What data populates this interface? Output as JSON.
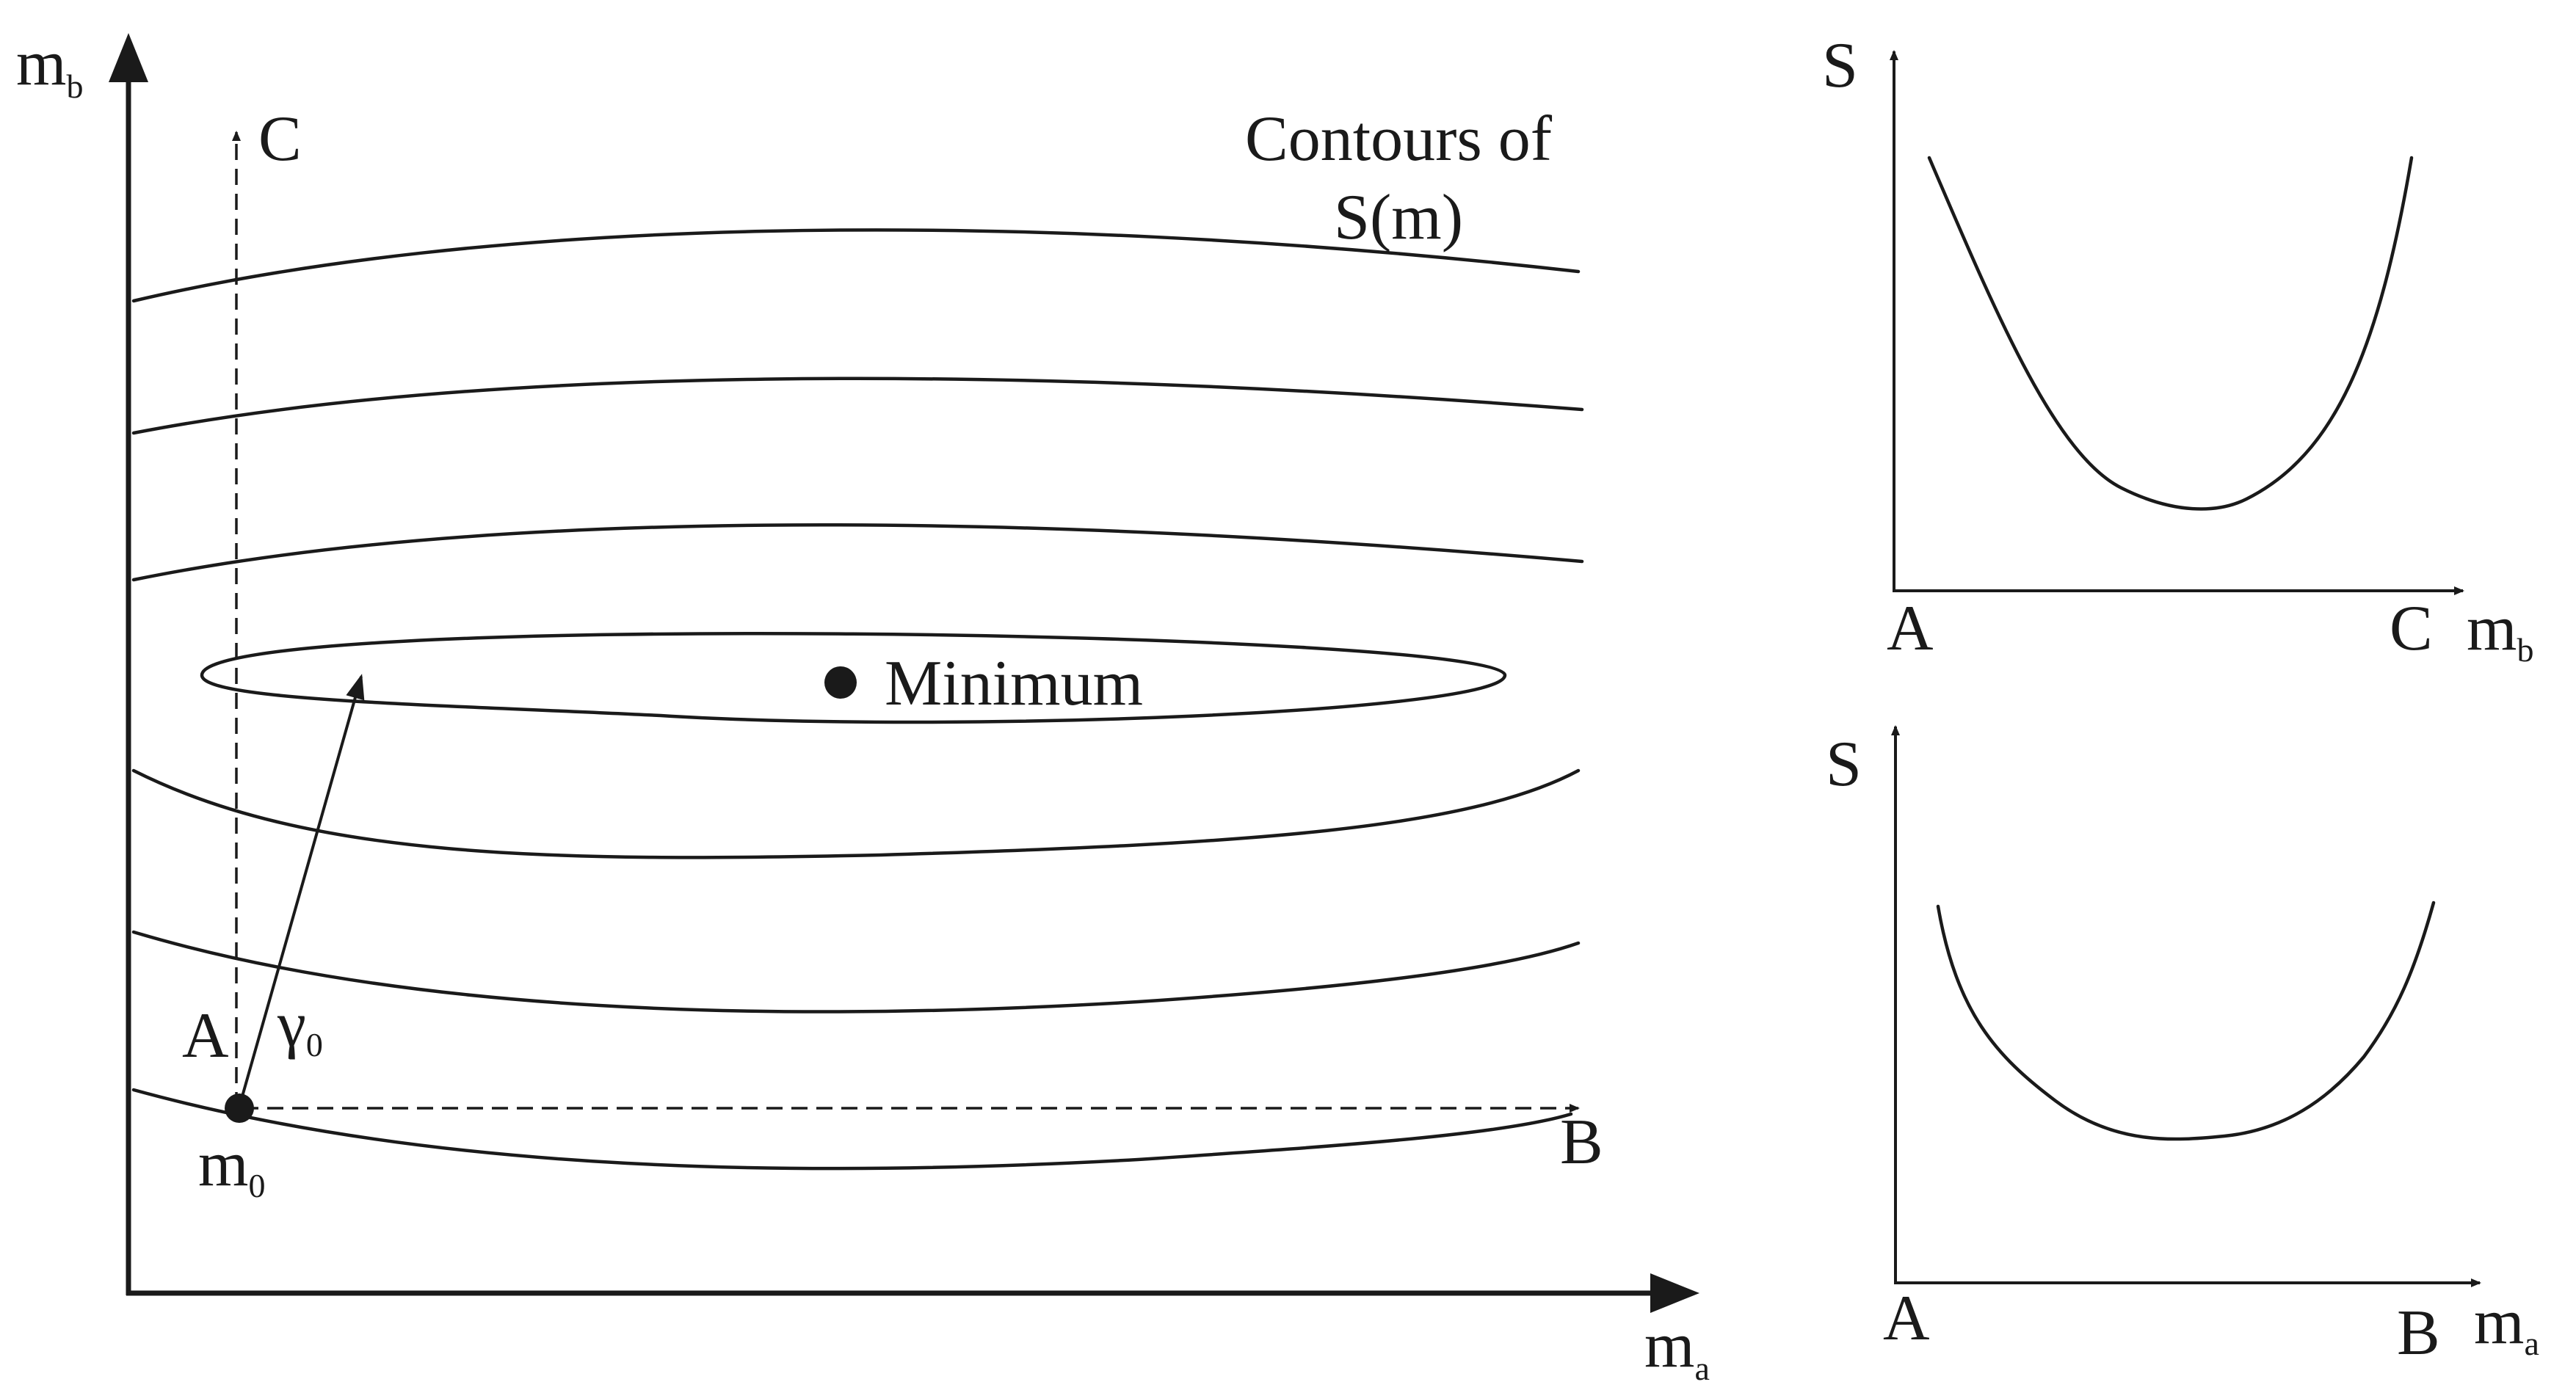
{
  "main_plot": {
    "y_axis_label": "m",
    "y_axis_sub": "b",
    "x_axis_label": "m",
    "x_axis_sub": "a",
    "contours_line1": "Contours of",
    "contours_line2": "S(m)",
    "minimum_label": "Minimum",
    "point_a_label": "A",
    "point_b_label": "B",
    "point_c_label": "C",
    "start_label": "m",
    "start_sub": "0",
    "gamma_label": "γ",
    "gamma_sub": "0"
  },
  "plot_ac": {
    "y_label": "S",
    "x_start": "A",
    "x_end": "C",
    "x_var": "m",
    "x_var_sub": "b"
  },
  "plot_ab": {
    "y_label": "S",
    "x_start": "A",
    "x_end": "B",
    "x_var": "m",
    "x_var_sub": "a"
  }
}
